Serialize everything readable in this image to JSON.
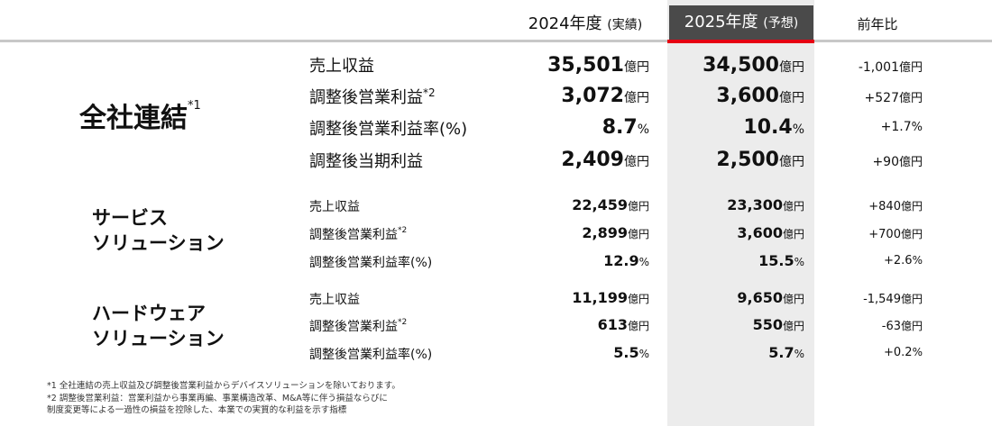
{
  "header": {
    "y2024": "2024年度",
    "y2024_sub": "(実績)",
    "y2025": "2025年度",
    "y2025_sub": "(予想)",
    "ratio": "前年比"
  },
  "units": {
    "oku_yen": "億円",
    "percent": "%"
  },
  "segments": {
    "consolidated": {
      "name": "全社連結",
      "mark": "*1",
      "rows": [
        {
          "label": "売上収益",
          "mark": "",
          "v2024": "35,501",
          "u2024": "億円",
          "v2025": "34,500",
          "u2025": "億円",
          "ratio": "-1,001",
          "uratio": "億円"
        },
        {
          "label": "調整後営業利益",
          "mark": "*2",
          "v2024": "3,072",
          "u2024": "億円",
          "v2025": "3,600",
          "u2025": "億円",
          "ratio": "+527",
          "uratio": "億円"
        },
        {
          "label": "調整後営業利益率(%)",
          "mark": "",
          "v2024": "8.7",
          "u2024": "%",
          "v2025": "10.4",
          "u2025": "%",
          "ratio": "+1.7",
          "uratio": "%"
        },
        {
          "label": "調整後当期利益",
          "mark": "",
          "v2024": "2,409",
          "u2024": "億円",
          "v2025": "2,500",
          "u2025": "億円",
          "ratio": "+90",
          "uratio": "億円"
        }
      ]
    },
    "service": {
      "name_line1": "サービス",
      "name_line2": "ソリューション",
      "rows": [
        {
          "label": "売上収益",
          "mark": "",
          "v2024": "22,459",
          "u2024": "億円",
          "v2025": "23,300",
          "u2025": "億円",
          "ratio": "+840",
          "uratio": "億円"
        },
        {
          "label": "調整後営業利益",
          "mark": "*2",
          "v2024": "2,899",
          "u2024": "億円",
          "v2025": "3,600",
          "u2025": "億円",
          "ratio": "+700",
          "uratio": "億円"
        },
        {
          "label": "調整後営業利益率(%)",
          "mark": "",
          "v2024": "12.9",
          "u2024": "%",
          "v2025": "15.5",
          "u2025": "%",
          "ratio": "+2.6",
          "uratio": "%"
        }
      ]
    },
    "hardware": {
      "name_line1": "ハードウェア",
      "name_line2": "ソリューション",
      "rows": [
        {
          "label": "売上収益",
          "mark": "",
          "v2024": "11,199",
          "u2024": "億円",
          "v2025": "9,650",
          "u2025": "億円",
          "ratio": "-1,549",
          "uratio": "億円"
        },
        {
          "label": "調整後営業利益",
          "mark": "*2",
          "v2024": "613",
          "u2024": "億円",
          "v2025": "550",
          "u2025": "億円",
          "ratio": "-63",
          "uratio": "億円"
        },
        {
          "label": "調整後営業利益率(%)",
          "mark": "",
          "v2024": "5.5",
          "u2024": "%",
          "v2025": "5.7",
          "u2025": "%",
          "ratio": "+0.2",
          "uratio": "%"
        }
      ]
    }
  },
  "notes": [
    "*1  全社連結の売上収益及び調整後営業利益からデバイスソリューションを除いております。",
    "*2  調整後営業利益：営業利益から事業再編、事業構造改革、M&A等に伴う損益ならびに",
    "       制度変更等による一過性の損益を控除した、本業での実質的な利益を示す指標"
  ],
  "colors": {
    "accent_red": "#e60012",
    "header_dark": "#4a4a4a",
    "column_bg": "#ececec"
  }
}
